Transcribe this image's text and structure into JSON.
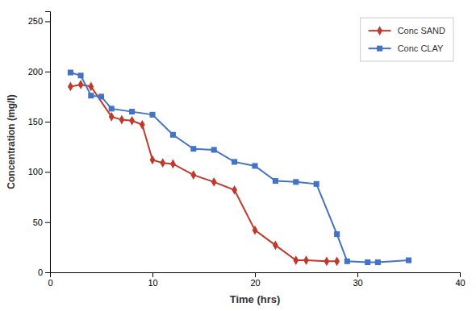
{
  "chart_data": {
    "type": "line",
    "xlabel": "Time (hrs)",
    "ylabel": "Concentration (mg/l)",
    "series": [
      {
        "name": "Conc SAND",
        "color": "#C0392B",
        "marker": "diamond",
        "x": [
          2,
          3,
          4,
          6,
          7,
          8,
          9,
          10,
          11,
          12,
          14,
          16,
          18,
          20,
          22,
          24,
          25,
          27,
          28
        ],
        "values": [
          185,
          187,
          185,
          155,
          152,
          151,
          147,
          112,
          109,
          108,
          97,
          90,
          82,
          42,
          27,
          12,
          12,
          11,
          11
        ]
      },
      {
        "name": "Conc CLAY",
        "color": "#4472C4",
        "marker": "square",
        "x": [
          2,
          3,
          4,
          5,
          6,
          8,
          10,
          12,
          14,
          16,
          18,
          20,
          22,
          24,
          26,
          28,
          29,
          31,
          32,
          35
        ],
        "values": [
          199,
          196,
          176,
          175,
          163,
          160,
          157,
          137,
          123,
          122,
          110,
          106,
          91,
          90,
          88,
          38,
          11,
          10,
          10,
          12
        ]
      }
    ],
    "xlim": [
      0,
      40
    ],
    "ylim": [
      0,
      260
    ],
    "xticks": [
      0,
      10,
      20,
      30,
      40
    ],
    "yticks": [
      0,
      50,
      100,
      150,
      200,
      250
    ],
    "legend": "upper right",
    "grid": false
  }
}
